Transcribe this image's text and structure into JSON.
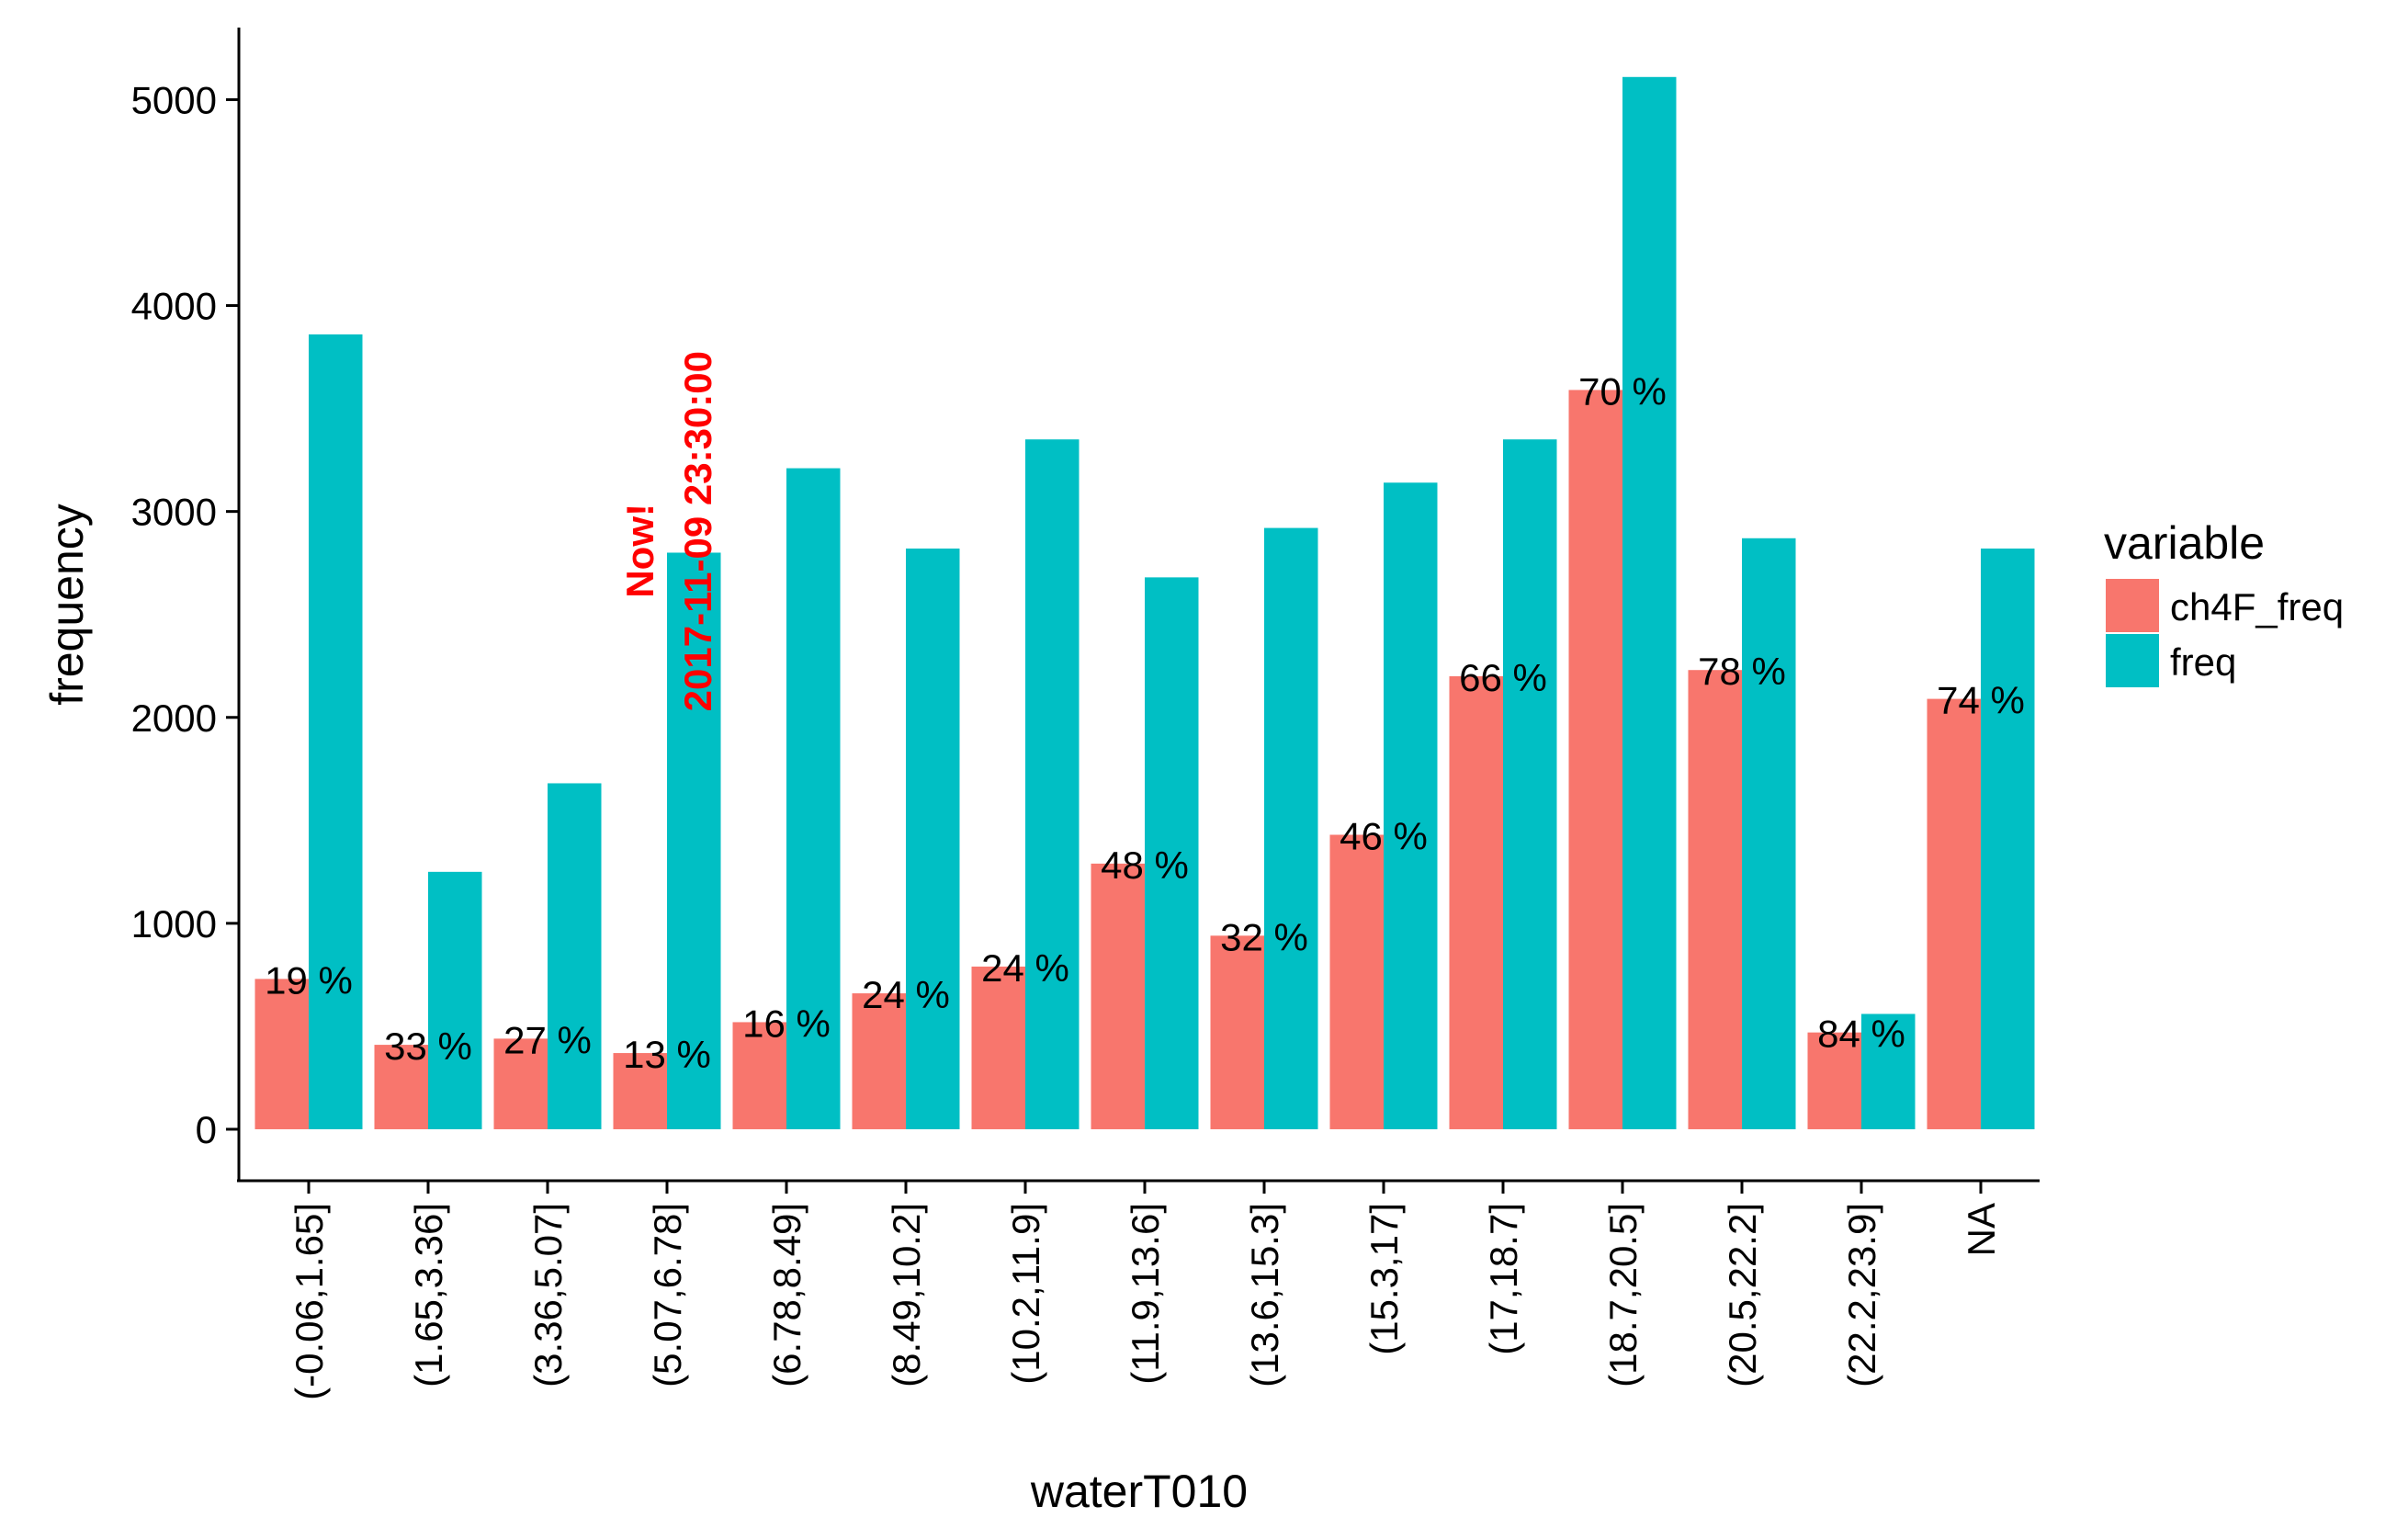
{
  "chart_data": {
    "type": "bar",
    "xlabel": "waterT010",
    "ylabel": "frequency",
    "ylim": [
      -250,
      5350
    ],
    "yticks": [
      0,
      1000,
      2000,
      3000,
      4000,
      5000
    ],
    "grid": false,
    "legend_position": "right",
    "legend_title": "variable",
    "categories": [
      "(-0.06,1.65]",
      "(1.65,3.36]",
      "(3.36,5.07]",
      "(5.07,6.78]",
      "(6.78,8.49]",
      "(8.49,10.2]",
      "(10.2,11.9]",
      "(11.9,13.6]",
      "(13.6,15.3]",
      "(15.3,17]",
      "(17,18.7]",
      "(18.7,20.5]",
      "(20.5,22.2]",
      "(22.2,23.9]",
      "NA"
    ],
    "series": [
      {
        "name": "ch4F_freq",
        "color": "#F8766D",
        "values": [
          730,
          410,
          440,
          370,
          520,
          660,
          790,
          1290,
          940,
          1430,
          2200,
          3590,
          2230,
          470,
          2090
        ]
      },
      {
        "name": "freq",
        "color": "#00BFC4",
        "values": [
          3860,
          1250,
          1680,
          2800,
          3210,
          2820,
          3350,
          2680,
          2920,
          3140,
          3350,
          5110,
          2870,
          560,
          2820
        ]
      }
    ],
    "data_labels": [
      "19 %",
      "33 %",
      "27 %",
      "13 %",
      "16 %",
      "24 %",
      "24 %",
      "48 %",
      "32 %",
      "46 %",
      "66 %",
      "70 %",
      "78 %",
      "84 %",
      "74 %"
    ],
    "annotation": {
      "category": "(5.07,6.78]",
      "line1": "Now!",
      "line2": "2017-11-09 23:30:00",
      "color": "#FF0000"
    }
  }
}
